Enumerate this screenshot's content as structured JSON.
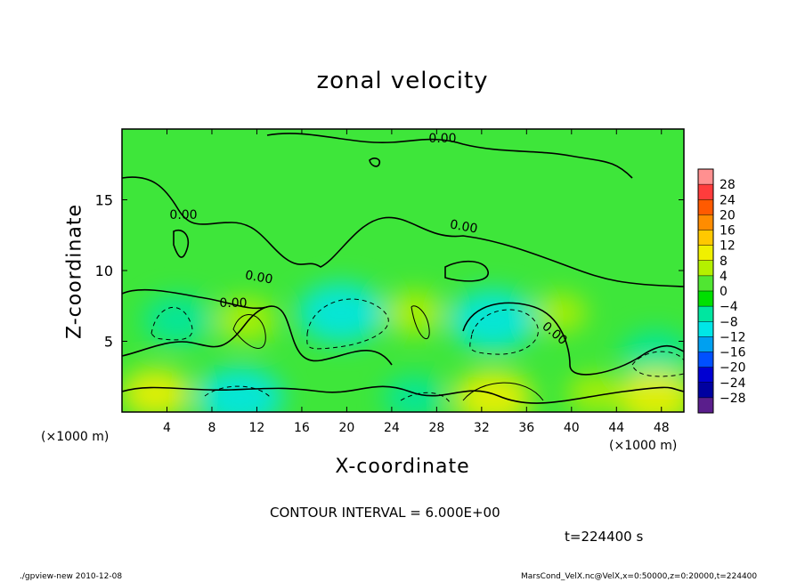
{
  "chart_data": {
    "type": "heatmap",
    "title": "zonal velocity",
    "xlabel": "X-coordinate",
    "ylabel": "Z-coordinate",
    "x_unit": "(×1000 m)",
    "xlim": [
      0,
      50
    ],
    "ylim": [
      0,
      20
    ],
    "xticks": [
      4,
      8,
      12,
      16,
      20,
      24,
      28,
      32,
      36,
      40,
      44,
      48
    ],
    "yticks": [
      5,
      10,
      15
    ],
    "contour_label": "0.00",
    "contour_interval_text": "CONTOUR INTERVAL = 6.000E+00",
    "time_text": "t=224400 s",
    "colorbar": {
      "levels": [
        28,
        24,
        20,
        16,
        12,
        8,
        4,
        0,
        -4,
        -8,
        -12,
        -16,
        -20,
        -24,
        -28
      ],
      "level_labels": [
        "28",
        "24",
        "20",
        "16",
        "12",
        "8",
        "4",
        "0",
        "−4",
        "−8",
        "−12",
        "−16",
        "−20",
        "−24",
        "−28"
      ],
      "colors": [
        "#ff9090",
        "#ff3c3c",
        "#ff5a00",
        "#ff8c00",
        "#ffc800",
        "#f0f000",
        "#b4f000",
        "#50e632",
        "#00e000",
        "#00e6a0",
        "#00e6e6",
        "#00a0f0",
        "#0050ff",
        "#0000d2",
        "#0000a0",
        "#5a1e8c"
      ]
    },
    "fields": [
      {
        "x": 5,
        "z": 6.5,
        "value": -8
      },
      {
        "x": 11,
        "z": 6.5,
        "value": 6
      },
      {
        "x": 10.5,
        "z": 1.0,
        "value": -12
      },
      {
        "x": 19.5,
        "z": 7.0,
        "value": -12
      },
      {
        "x": 26,
        "z": 7.0,
        "value": 6
      },
      {
        "x": 26,
        "z": 1.0,
        "value": -6
      },
      {
        "x": 33,
        "z": 6.5,
        "value": -12
      },
      {
        "x": 33,
        "z": 1.0,
        "value": 10
      },
      {
        "x": 39,
        "z": 7.0,
        "value": 4
      },
      {
        "x": 47.5,
        "z": 4.0,
        "value": -8
      },
      {
        "x": 47.5,
        "z": 1.0,
        "value": 10
      },
      {
        "x": 3,
        "z": 1.3,
        "value": 8
      },
      {
        "x": 42,
        "z": 1.3,
        "value": 4
      }
    ]
  },
  "footer": {
    "left": "./gpview-new   2010-12-08",
    "right": "MarsCond_VelX.nc@VelX,x=0:50000,z=0:20000,t=224400"
  }
}
